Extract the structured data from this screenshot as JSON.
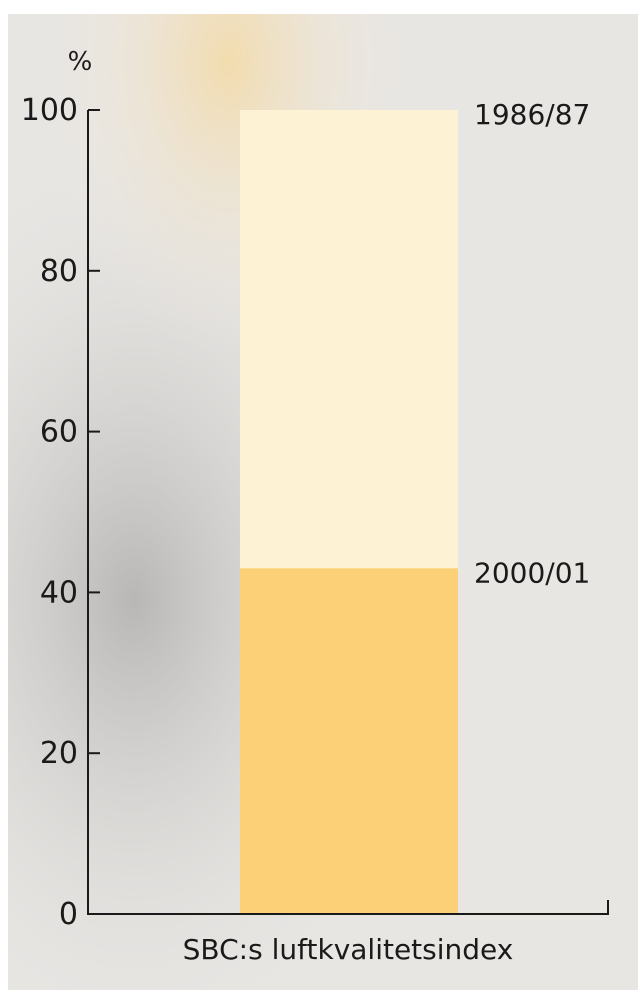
{
  "chart_data": {
    "type": "bar",
    "overlap": true,
    "categories": [
      "SBC:s luftkvalitetsindex"
    ],
    "series": [
      {
        "name": "1986/87",
        "color": "#fdf2d4",
        "values": [
          100
        ]
      },
      {
        "name": "2000/01",
        "color": "#fcd077",
        "values": [
          43
        ]
      }
    ],
    "y_label": "%",
    "ylim": [
      0,
      100
    ],
    "yticks": [
      0,
      20,
      40,
      60,
      80,
      100
    ]
  }
}
